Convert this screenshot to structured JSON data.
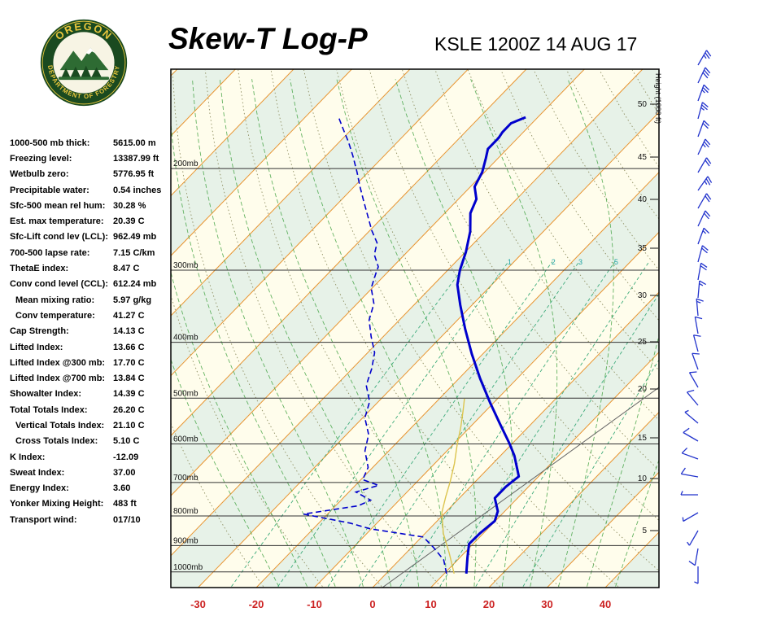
{
  "header": {
    "title": "Skew-T Log-P",
    "station": "KSLE 1200Z 14 AUG 17"
  },
  "logo": {
    "arc_top": "OREGON",
    "arc_bottom": "DEPARTMENT OF FORESTRY"
  },
  "indices": [
    {
      "label": "1000-500 mb thick:",
      "value": "5615.00 m",
      "indent": false
    },
    {
      "label": "Freezing level:",
      "value": "13387.99 ft",
      "indent": false
    },
    {
      "label": "Wetbulb zero:",
      "value": "5776.95 ft",
      "indent": false
    },
    {
      "label": "Precipitable water:",
      "value": "0.54 inches",
      "indent": false
    },
    {
      "label": "Sfc-500 mean rel hum:",
      "value": "30.28 %",
      "indent": false
    },
    {
      "label": "Est. max temperature:",
      "value": "20.39 C",
      "indent": false
    },
    {
      "label": "Sfc-Lift cond lev (LCL):",
      "value": "962.49 mb",
      "indent": false
    },
    {
      "label": "700-500 lapse rate:",
      "value": "7.15 C/km",
      "indent": false
    },
    {
      "label": "ThetaE index:",
      "value": "8.47 C",
      "indent": false
    },
    {
      "label": "Conv cond level (CCL):",
      "value": "612.24 mb",
      "indent": false
    },
    {
      "label": "Mean mixing ratio:",
      "value": "5.97 g/kg",
      "indent": true
    },
    {
      "label": "Conv temperature:",
      "value": "41.27 C",
      "indent": true
    },
    {
      "label": "Cap Strength:",
      "value": "14.13 C",
      "indent": false
    },
    {
      "label": "Lifted Index:",
      "value": "13.66 C",
      "indent": false
    },
    {
      "label": "Lifted Index @300 mb:",
      "value": "17.70 C",
      "indent": false
    },
    {
      "label": "Lifted Index @700 mb:",
      "value": "13.84 C",
      "indent": false
    },
    {
      "label": "Showalter Index:",
      "value": "14.39 C",
      "indent": false
    },
    {
      "label": "Total Totals Index:",
      "value": "26.20 C",
      "indent": false
    },
    {
      "label": "Vertical Totals Index:",
      "value": "21.10 C",
      "indent": true
    },
    {
      "label": "Cross Totals Index:",
      "value": "5.10 C",
      "indent": true
    },
    {
      "label": "K Index:",
      "value": "-12.09",
      "indent": false
    },
    {
      "label": "Sweat Index:",
      "value": "37.00",
      "indent": false
    },
    {
      "label": "Energy Index:",
      "value": "3.60",
      "indent": false
    },
    {
      "label": "Yonker Mixing Height:",
      "value": "483 ft",
      "indent": false
    },
    {
      "label": "Transport wind:",
      "value": "017/10",
      "indent": false
    }
  ],
  "chart_data": {
    "type": "line",
    "subtype": "skew-t-log-p-sounding",
    "title": "Skew-T Log-P",
    "station": "KSLE",
    "valid_time": "1200Z 14 AUG 17",
    "pressure_axis": {
      "unit": "mb",
      "labels": [
        "200mb",
        "300mb",
        "400mb",
        "500mb",
        "600mb",
        "700mb",
        "800mb",
        "900mb",
        "1000mb"
      ],
      "values": [
        200,
        300,
        400,
        500,
        600,
        700,
        800,
        900,
        1000
      ]
    },
    "temp_axis": {
      "unit": "C",
      "tick_labels": [
        "-30",
        "-20",
        "-10",
        "0",
        "10",
        "20",
        "30",
        "40"
      ],
      "tick_values": [
        -30,
        -20,
        -10,
        0,
        10,
        20,
        30,
        40
      ],
      "label_color": "#cc2222"
    },
    "height_axis": {
      "title": "Height (1000 ft)",
      "tick_values": [
        50,
        45,
        40,
        35,
        30,
        25,
        20,
        15,
        10,
        5
      ]
    },
    "mixing_ratio_labels": [
      1,
      2,
      3,
      5
    ],
    "series": [
      {
        "name": "temperature",
        "color": "#0000cc",
        "style": "solid",
        "points_p_t": [
          [
            1007,
            13.8
          ],
          [
            944,
            11.3
          ],
          [
            894,
            9.3
          ],
          [
            857,
            9.4
          ],
          [
            816,
            9.9
          ],
          [
            785,
            8.8
          ],
          [
            745,
            6.1
          ],
          [
            712,
            6.1
          ],
          [
            683,
            6.6
          ],
          [
            629,
            2.4
          ],
          [
            599,
            -0.5
          ],
          [
            553,
            -5.5
          ],
          [
            510,
            -10.5
          ],
          [
            462,
            -16.4
          ],
          [
            419,
            -21.9
          ],
          [
            380,
            -27.1
          ],
          [
            345,
            -32.0
          ],
          [
            318,
            -35.9
          ],
          [
            300,
            -37.9
          ],
          [
            279,
            -39.9
          ],
          [
            257,
            -42.6
          ],
          [
            239,
            -45.6
          ],
          [
            226,
            -46.9
          ],
          [
            215,
            -49.3
          ],
          [
            203,
            -50.4
          ],
          [
            192,
            -52.1
          ],
          [
            185,
            -53.3
          ],
          [
            177,
            -53.3
          ],
          [
            173,
            -53.6
          ],
          [
            167,
            -53.6
          ],
          [
            163,
            -52.1
          ]
        ]
      },
      {
        "name": "dewpoint",
        "color": "#0000cc",
        "style": "dashed",
        "points_p_t": [
          [
            1007,
            10.4
          ],
          [
            953,
            7.6
          ],
          [
            906,
            3.7
          ],
          [
            870,
            0.3
          ],
          [
            842,
            -10.2
          ],
          [
            823,
            -14.6
          ],
          [
            794,
            -24.1
          ],
          [
            768,
            -16.1
          ],
          [
            751,
            -14.9
          ],
          [
            727,
            -18.8
          ],
          [
            708,
            -16.0
          ],
          [
            692,
            -19.7
          ],
          [
            659,
            -20.8
          ],
          [
            617,
            -24.1
          ],
          [
            578,
            -26.2
          ],
          [
            541,
            -29.6
          ],
          [
            507,
            -31.5
          ],
          [
            475,
            -34.8
          ],
          [
            445,
            -36.6
          ],
          [
            417,
            -38.8
          ],
          [
            391,
            -42.1
          ],
          [
            366,
            -45.2
          ],
          [
            343,
            -47.1
          ],
          [
            322,
            -50.2
          ],
          [
            304,
            -51.8
          ],
          [
            296,
            -52.5
          ],
          [
            282,
            -55.2
          ],
          [
            269,
            -56.7
          ],
          [
            256,
            -59.7
          ],
          [
            242,
            -62.7
          ],
          [
            228,
            -65.9
          ],
          [
            215,
            -69.0
          ],
          [
            203,
            -71.9
          ],
          [
            190,
            -75.4
          ],
          [
            180,
            -78.4
          ],
          [
            170,
            -81.8
          ],
          [
            162,
            -84.6
          ]
        ]
      },
      {
        "name": "wetbulb",
        "color": "#dcc44e",
        "style": "solid",
        "points_p_t": [
          [
            1007,
            11.7
          ],
          [
            929,
            7.5
          ],
          [
            857,
            3.1
          ],
          [
            789,
            -0.6
          ],
          [
            740,
            -2.6
          ],
          [
            698,
            -4.3
          ],
          [
            649,
            -6.6
          ],
          [
            605,
            -9.1
          ],
          [
            561,
            -11.6
          ],
          [
            526,
            -13.9
          ],
          [
            501,
            -15.7
          ]
        ]
      }
    ],
    "wind_barbs": {
      "color": "#2233cc",
      "barbs": [
        [
          30,
          25
        ],
        [
          25,
          30
        ],
        [
          20,
          25
        ],
        [
          15,
          25
        ],
        [
          20,
          20
        ],
        [
          25,
          25
        ],
        [
          30,
          20
        ],
        [
          35,
          25
        ],
        [
          30,
          20
        ],
        [
          25,
          20
        ],
        [
          20,
          15
        ],
        [
          15,
          20
        ],
        [
          10,
          20
        ],
        [
          5,
          15
        ],
        [
          355,
          15
        ],
        [
          350,
          10
        ],
        [
          345,
          10
        ],
        [
          340,
          10
        ],
        [
          330,
          10
        ],
        [
          320,
          10
        ],
        [
          310,
          5
        ],
        [
          300,
          10
        ],
        [
          290,
          10
        ],
        [
          280,
          10
        ],
        [
          270,
          5
        ],
        [
          240,
          5
        ],
        [
          210,
          5
        ],
        [
          190,
          10
        ],
        [
          180,
          5
        ]
      ]
    },
    "grid": {
      "band_colors": [
        "#fffdec",
        "#e7f2e8"
      ],
      "isotherm_color": "#e89430",
      "isobar_color": "#333333",
      "dry_adiabat_color": "#8f8f62",
      "moist_adiabat_color": "#3fa03f",
      "mixing_ratio_color": "#2aa36f",
      "mixing_ratio_label_color": "#1fa3a3",
      "isotherm_step_c": 10,
      "isobar_step_mb": 100
    }
  }
}
